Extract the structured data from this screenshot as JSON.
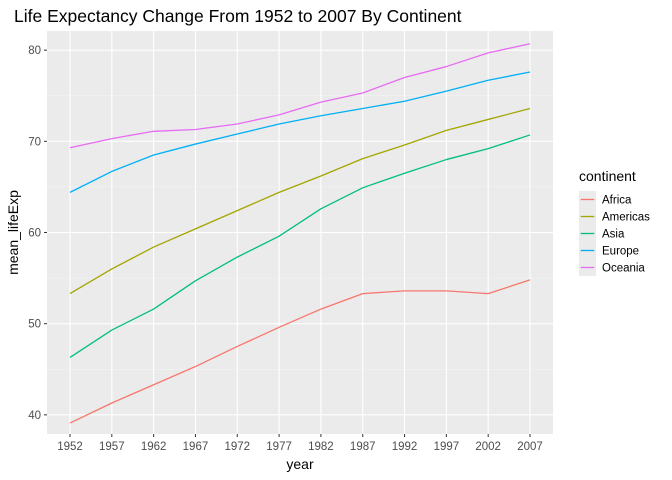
{
  "chart_data": {
    "type": "line",
    "title": "Life Expectancy Change From 1952 to 2007 By Continent",
    "xlabel": "year",
    "ylabel": "mean_lifeExp",
    "x": [
      1952,
      1957,
      1962,
      1967,
      1972,
      1977,
      1982,
      1987,
      1992,
      1997,
      2002,
      2007
    ],
    "xlim": [
      1949.25,
      2009.75
    ],
    "ylim": [
      37.9,
      82.1
    ],
    "yticks": [
      40,
      50,
      60,
      70,
      80
    ],
    "grid": true,
    "legend_title": "continent",
    "legend_position": "right",
    "series": [
      {
        "name": "Africa",
        "color": "#F8766D",
        "values": [
          39.1,
          41.3,
          43.3,
          45.3,
          47.5,
          49.6,
          51.6,
          53.3,
          53.6,
          53.6,
          53.3,
          54.8
        ]
      },
      {
        "name": "Americas",
        "color": "#A3A500",
        "values": [
          53.3,
          56.0,
          58.4,
          60.4,
          62.4,
          64.4,
          66.2,
          68.1,
          69.6,
          71.2,
          72.4,
          73.6
        ]
      },
      {
        "name": "Asia",
        "color": "#00BF7D",
        "values": [
          46.3,
          49.3,
          51.6,
          54.7,
          57.3,
          59.6,
          62.6,
          64.9,
          66.5,
          68.0,
          69.2,
          70.7
        ]
      },
      {
        "name": "Europe",
        "color": "#00B0F6",
        "values": [
          64.4,
          66.7,
          68.5,
          69.7,
          70.8,
          71.9,
          72.8,
          73.6,
          74.4,
          75.5,
          76.7,
          77.6
        ]
      },
      {
        "name": "Oceania",
        "color": "#E76BF3",
        "values": [
          69.3,
          70.3,
          71.1,
          71.3,
          71.9,
          72.9,
          74.3,
          75.3,
          77.0,
          78.2,
          79.7,
          80.7
        ]
      }
    ]
  },
  "colors": {
    "panel_bg": "#EBEBEB",
    "grid_major": "#FFFFFF",
    "tick_text": "#4D4D4D"
  }
}
